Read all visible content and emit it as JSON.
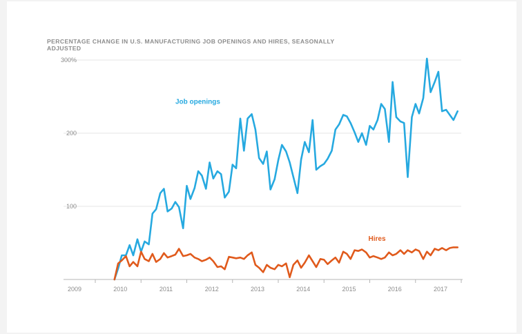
{
  "chart_data": {
    "type": "line",
    "title": "PERCENTAGE CHANGE IN U.S. MANUFACTURING JOB OPENINGS AND HIRES, SEASONALLY ADJUSTED",
    "xlabel": "",
    "ylabel": "",
    "xlim": [
      2009,
      2017
    ],
    "ylim": [
      0,
      300
    ],
    "grid": true,
    "legend": "inline labels on series",
    "y_ticks": [
      {
        "value": 300,
        "label": "300%"
      },
      {
        "value": 200,
        "label": "200"
      },
      {
        "value": 100,
        "label": "100"
      }
    ],
    "x_ticks": [
      {
        "value": 2009,
        "label": "2009"
      },
      {
        "value": 2010,
        "label": "2010"
      },
      {
        "value": 2011,
        "label": "2011"
      },
      {
        "value": 2012,
        "label": "2012"
      },
      {
        "value": 2013,
        "label": "2013"
      },
      {
        "value": 2014,
        "label": "2014"
      },
      {
        "value": 2015,
        "label": "2015"
      },
      {
        "value": 2016,
        "label": "2016"
      },
      {
        "value": 2017,
        "label": "2017"
      }
    ],
    "series": [
      {
        "name": "Job openings",
        "color": "#26a9e0",
        "label_at": [
          2010.75,
          240
        ],
        "points": [
          [
            2009.42,
            0
          ],
          [
            2009.5,
            15
          ],
          [
            2009.58,
            33
          ],
          [
            2009.67,
            33
          ],
          [
            2009.75,
            47
          ],
          [
            2009.83,
            33
          ],
          [
            2009.92,
            55
          ],
          [
            2010.0,
            38
          ],
          [
            2010.08,
            52
          ],
          [
            2010.17,
            48
          ],
          [
            2010.25,
            90
          ],
          [
            2010.33,
            96
          ],
          [
            2010.42,
            118
          ],
          [
            2010.5,
            124
          ],
          [
            2010.58,
            93
          ],
          [
            2010.67,
            97
          ],
          [
            2010.75,
            106
          ],
          [
            2010.83,
            99
          ],
          [
            2010.92,
            70
          ],
          [
            2011.0,
            128
          ],
          [
            2011.08,
            110
          ],
          [
            2011.17,
            125
          ],
          [
            2011.25,
            148
          ],
          [
            2011.33,
            142
          ],
          [
            2011.42,
            124
          ],
          [
            2011.5,
            160
          ],
          [
            2011.58,
            138
          ],
          [
            2011.67,
            148
          ],
          [
            2011.75,
            144
          ],
          [
            2011.83,
            112
          ],
          [
            2011.92,
            120
          ],
          [
            2012.0,
            157
          ],
          [
            2012.08,
            152
          ],
          [
            2012.17,
            220
          ],
          [
            2012.25,
            176
          ],
          [
            2012.33,
            220
          ],
          [
            2012.42,
            226
          ],
          [
            2012.5,
            205
          ],
          [
            2012.58,
            166
          ],
          [
            2012.67,
            158
          ],
          [
            2012.75,
            175
          ],
          [
            2012.83,
            123
          ],
          [
            2012.92,
            137
          ],
          [
            2013.0,
            163
          ],
          [
            2013.08,
            184
          ],
          [
            2013.17,
            175
          ],
          [
            2013.25,
            160
          ],
          [
            2013.33,
            140
          ],
          [
            2013.42,
            118
          ],
          [
            2013.5,
            164
          ],
          [
            2013.58,
            188
          ],
          [
            2013.67,
            174
          ],
          [
            2013.75,
            218
          ],
          [
            2013.83,
            150
          ],
          [
            2013.92,
            155
          ],
          [
            2014.0,
            158
          ],
          [
            2014.08,
            165
          ],
          [
            2014.17,
            176
          ],
          [
            2014.25,
            205
          ],
          [
            2014.33,
            212
          ],
          [
            2014.42,
            225
          ],
          [
            2014.5,
            223
          ],
          [
            2014.58,
            214
          ],
          [
            2014.67,
            201
          ],
          [
            2014.75,
            188
          ],
          [
            2014.83,
            200
          ],
          [
            2014.92,
            184
          ],
          [
            2015.0,
            210
          ],
          [
            2015.08,
            205
          ],
          [
            2015.17,
            218
          ],
          [
            2015.25,
            240
          ],
          [
            2015.33,
            233
          ],
          [
            2015.42,
            188
          ],
          [
            2015.5,
            270
          ],
          [
            2015.58,
            222
          ],
          [
            2015.67,
            216
          ],
          [
            2015.75,
            214
          ],
          [
            2015.83,
            140
          ],
          [
            2015.92,
            222
          ],
          [
            2016.0,
            240
          ],
          [
            2016.08,
            227
          ],
          [
            2016.17,
            248
          ],
          [
            2016.25,
            302
          ],
          [
            2016.33,
            256
          ],
          [
            2016.42,
            270
          ],
          [
            2016.5,
            284
          ],
          [
            2016.58,
            230
          ],
          [
            2016.67,
            232
          ],
          [
            2016.75,
            225
          ],
          [
            2016.83,
            218
          ],
          [
            2016.92,
            230
          ]
        ]
      },
      {
        "name": "Hires",
        "color": "#e05a1c",
        "label_at": [
          2014.97,
          53
        ],
        "points": [
          [
            2009.42,
            0
          ],
          [
            2009.5,
            22
          ],
          [
            2009.58,
            26
          ],
          [
            2009.67,
            32
          ],
          [
            2009.75,
            18
          ],
          [
            2009.83,
            24
          ],
          [
            2009.92,
            18
          ],
          [
            2010.0,
            38
          ],
          [
            2010.08,
            28
          ],
          [
            2010.17,
            25
          ],
          [
            2010.25,
            35
          ],
          [
            2010.33,
            24
          ],
          [
            2010.42,
            28
          ],
          [
            2010.5,
            36
          ],
          [
            2010.58,
            30
          ],
          [
            2010.67,
            32
          ],
          [
            2010.75,
            34
          ],
          [
            2010.83,
            42
          ],
          [
            2010.92,
            32
          ],
          [
            2011.0,
            33
          ],
          [
            2011.08,
            35
          ],
          [
            2011.17,
            30
          ],
          [
            2011.25,
            28
          ],
          [
            2011.33,
            25
          ],
          [
            2011.42,
            27
          ],
          [
            2011.5,
            30
          ],
          [
            2011.58,
            25
          ],
          [
            2011.67,
            17
          ],
          [
            2011.75,
            18
          ],
          [
            2011.83,
            14
          ],
          [
            2011.92,
            31
          ],
          [
            2012.0,
            30
          ],
          [
            2012.08,
            29
          ],
          [
            2012.17,
            30
          ],
          [
            2012.25,
            28
          ],
          [
            2012.33,
            33
          ],
          [
            2012.42,
            37
          ],
          [
            2012.5,
            20
          ],
          [
            2012.58,
            16
          ],
          [
            2012.67,
            10
          ],
          [
            2012.75,
            20
          ],
          [
            2012.83,
            16
          ],
          [
            2012.92,
            14
          ],
          [
            2013.0,
            20
          ],
          [
            2013.08,
            18
          ],
          [
            2013.17,
            22
          ],
          [
            2013.25,
            3
          ],
          [
            2013.33,
            20
          ],
          [
            2013.42,
            26
          ],
          [
            2013.5,
            16
          ],
          [
            2013.58,
            23
          ],
          [
            2013.67,
            33
          ],
          [
            2013.75,
            25
          ],
          [
            2013.83,
            17
          ],
          [
            2013.92,
            28
          ],
          [
            2014.0,
            27
          ],
          [
            2014.08,
            21
          ],
          [
            2014.17,
            26
          ],
          [
            2014.25,
            30
          ],
          [
            2014.33,
            23
          ],
          [
            2014.42,
            38
          ],
          [
            2014.5,
            35
          ],
          [
            2014.58,
            28
          ],
          [
            2014.67,
            40
          ],
          [
            2014.75,
            39
          ],
          [
            2014.83,
            41
          ],
          [
            2014.92,
            37
          ],
          [
            2015.0,
            30
          ],
          [
            2015.08,
            32
          ],
          [
            2015.17,
            30
          ],
          [
            2015.25,
            28
          ],
          [
            2015.33,
            30
          ],
          [
            2015.42,
            37
          ],
          [
            2015.5,
            33
          ],
          [
            2015.58,
            35
          ],
          [
            2015.67,
            40
          ],
          [
            2015.75,
            35
          ],
          [
            2015.83,
            40
          ],
          [
            2015.92,
            37
          ],
          [
            2016.0,
            41
          ],
          [
            2016.08,
            39
          ],
          [
            2016.17,
            28
          ],
          [
            2016.25,
            38
          ],
          [
            2016.33,
            33
          ],
          [
            2016.42,
            42
          ],
          [
            2016.5,
            40
          ],
          [
            2016.58,
            43
          ],
          [
            2016.67,
            40
          ],
          [
            2016.75,
            43
          ],
          [
            2016.83,
            44
          ],
          [
            2016.92,
            44
          ]
        ]
      }
    ]
  }
}
